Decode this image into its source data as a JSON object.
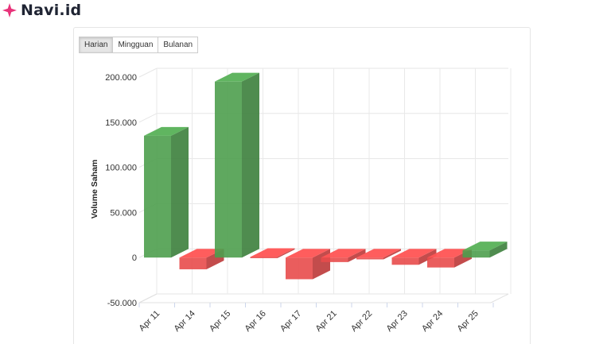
{
  "brand": {
    "name": "Navi.id",
    "logo_icon": "pink-sparkle-icon",
    "logo_color": "#e8337a"
  },
  "range_buttons": [
    {
      "label": "Harian",
      "active": true
    },
    {
      "label": "Mingguan",
      "active": false
    },
    {
      "label": "Bulanan",
      "active": false
    }
  ],
  "chart_data": {
    "type": "bar",
    "ylabel": "Volume Saham",
    "ylim": [
      -50000,
      200000
    ],
    "y_ticks": [
      200000,
      150000,
      100000,
      50000,
      0,
      -50000
    ],
    "y_tick_labels": [
      "200.000",
      "150.000",
      "100.000",
      "50.000",
      "0",
      "-50.000"
    ],
    "categories": [
      "Apr 11",
      "Apr 14",
      "Apr 15",
      "Apr 16",
      "Apr 17",
      "Apr 21",
      "Apr 22",
      "Apr 23",
      "Apr 24",
      "Apr 25"
    ],
    "values": [
      135000,
      -13000,
      195000,
      -1000,
      -24000,
      -5000,
      -2000,
      -8000,
      -11000,
      8000
    ],
    "colors": {
      "positive": "#4e9e4e",
      "negative": "#e84b4b"
    },
    "grid": true,
    "style": "3d"
  }
}
